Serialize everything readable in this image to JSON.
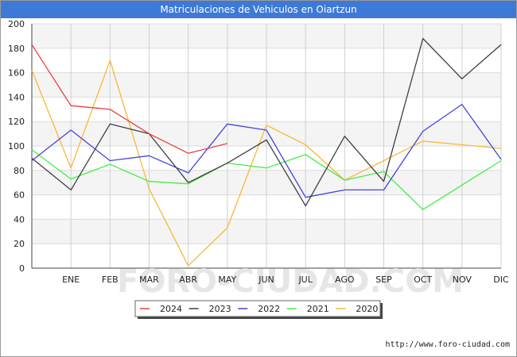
{
  "chart_data": {
    "type": "line",
    "title": "Matriculaciones de Vehiculos en Oiartzun",
    "categories": [
      "",
      "ENE",
      "FEB",
      "MAR",
      "ABR",
      "MAY",
      "JUN",
      "JUL",
      "AGO",
      "SEP",
      "OCT",
      "NOV",
      "DIC"
    ],
    "ylim": [
      0,
      200
    ],
    "yticks": [
      0,
      20,
      40,
      60,
      80,
      100,
      120,
      140,
      160,
      180,
      200
    ],
    "grid": true,
    "legend_position": "bottom",
    "series": [
      {
        "name": "2024",
        "color": "#e8413c",
        "values": [
          183,
          133,
          130,
          110,
          94,
          102,
          null,
          null,
          null,
          null,
          null,
          null,
          null
        ]
      },
      {
        "name": "2023",
        "color": "#404040",
        "values": [
          90,
          64,
          118,
          110,
          70,
          86,
          105,
          51,
          108,
          71,
          188,
          155,
          183
        ]
      },
      {
        "name": "2022",
        "color": "#4444e0",
        "values": [
          88,
          113,
          88,
          92,
          78,
          118,
          113,
          58,
          64,
          64,
          112,
          134,
          89
        ]
      },
      {
        "name": "2021",
        "color": "#44ee44",
        "values": [
          97,
          73,
          85,
          71,
          69,
          86,
          82,
          93,
          72,
          79,
          48,
          68,
          88
        ]
      },
      {
        "name": "2020",
        "color": "#f8b838",
        "values": [
          162,
          82,
          170,
          65,
          2,
          33,
          117,
          101,
          72,
          88,
          104,
          101,
          98
        ]
      }
    ]
  },
  "watermark": "FORO-CIUDAD.COM",
  "source": "http://www.foro-ciudad.com"
}
